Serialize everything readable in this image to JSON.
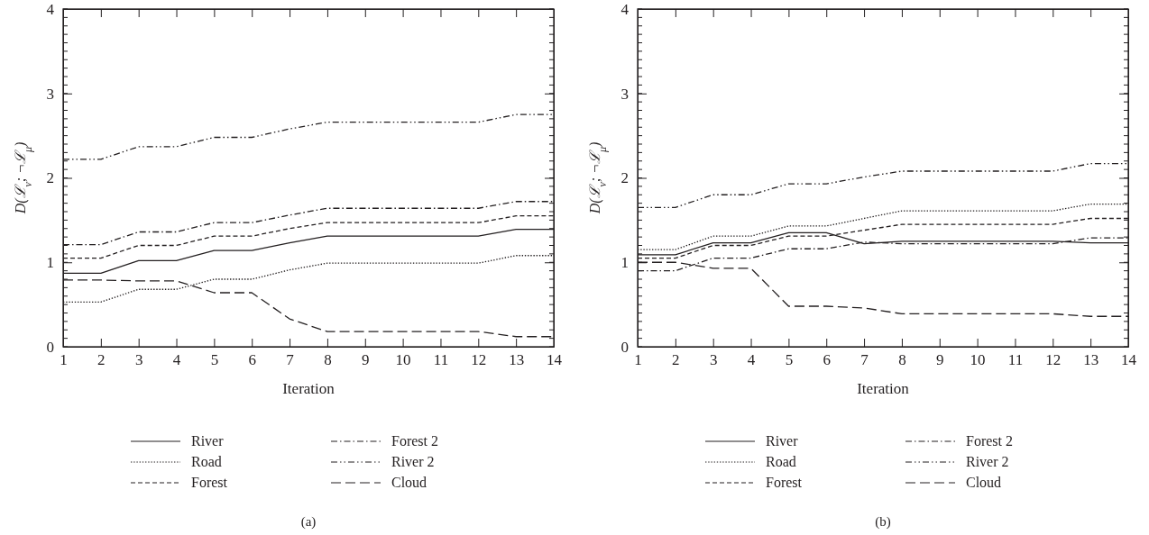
{
  "chart_data": [
    {
      "type": "line",
      "xlabel": "Iteration",
      "ylabel": "D(ℒ$_{ν}$; ¬ℒ$_{μ}$)",
      "annotations": [
        "(a)"
      ],
      "legend": "bottom",
      "xlim": [
        1,
        14
      ],
      "xticks": [
        1,
        2,
        3,
        4,
        5,
        6,
        7,
        8,
        9,
        10,
        11,
        12,
        13,
        14
      ],
      "ylim": [
        0,
        4
      ],
      "yticks": [
        0,
        1,
        2,
        3,
        4
      ],
      "x": [
        1,
        2,
        3,
        4,
        5,
        6,
        7,
        8,
        9,
        10,
        11,
        12,
        13,
        14
      ],
      "series": [
        {
          "name": "River",
          "color": "#231f20",
          "line_style": "solid",
          "values": [
            0.87,
            0.87,
            1.02,
            1.02,
            1.14,
            1.14,
            1.23,
            1.31,
            1.31,
            1.31,
            1.31,
            1.31,
            1.39,
            1.39
          ]
        },
        {
          "name": "Road",
          "color": "#231f20",
          "line_style": "dotted",
          "values": [
            0.53,
            0.53,
            0.68,
            0.68,
            0.8,
            0.8,
            0.91,
            0.99,
            0.99,
            0.99,
            0.99,
            0.99,
            1.08,
            1.08
          ]
        },
        {
          "name": "Forest",
          "color": "#231f20",
          "line_style": "dashed",
          "values": [
            1.05,
            1.05,
            1.2,
            1.2,
            1.31,
            1.31,
            1.4,
            1.47,
            1.47,
            1.47,
            1.47,
            1.47,
            1.55,
            1.55
          ]
        },
        {
          "name": "Forest 2",
          "color": "#231f20",
          "line_style": "dashdot",
          "values": [
            1.21,
            1.21,
            1.36,
            1.36,
            1.47,
            1.47,
            1.56,
            1.64,
            1.64,
            1.64,
            1.64,
            1.64,
            1.72,
            1.72
          ]
        },
        {
          "name": "River 2",
          "color": "#231f20",
          "line_style": "dashdotdot",
          "values": [
            2.22,
            2.22,
            2.37,
            2.37,
            2.48,
            2.48,
            2.58,
            2.66,
            2.66,
            2.66,
            2.66,
            2.66,
            2.75,
            2.75
          ]
        },
        {
          "name": "Cloud",
          "color": "#231f20",
          "line_style": "longdash",
          "values": [
            0.79,
            0.79,
            0.78,
            0.78,
            0.64,
            0.64,
            0.33,
            0.18,
            0.18,
            0.18,
            0.18,
            0.18,
            0.12,
            0.12
          ]
        }
      ]
    },
    {
      "type": "line",
      "xlabel": "Iteration",
      "ylabel": "D(ℒ$_{ν}$; ¬ℒ$_{μ}$)",
      "annotations": [
        "(b)"
      ],
      "legend": "bottom",
      "xlim": [
        1,
        14
      ],
      "xticks": [
        1,
        2,
        3,
        4,
        5,
        6,
        7,
        8,
        9,
        10,
        11,
        12,
        13,
        14
      ],
      "ylim": [
        0,
        4
      ],
      "yticks": [
        0,
        1,
        2,
        3,
        4
      ],
      "x": [
        1,
        2,
        3,
        4,
        5,
        6,
        7,
        8,
        9,
        10,
        11,
        12,
        13,
        14
      ],
      "series": [
        {
          "name": "River",
          "color": "#231f20",
          "line_style": "solid",
          "values": [
            1.09,
            1.09,
            1.23,
            1.23,
            1.35,
            1.35,
            1.22,
            1.25,
            1.25,
            1.25,
            1.25,
            1.25,
            1.23,
            1.23
          ]
        },
        {
          "name": "Road",
          "color": "#231f20",
          "line_style": "dotted",
          "values": [
            1.15,
            1.15,
            1.31,
            1.31,
            1.43,
            1.43,
            1.52,
            1.61,
            1.61,
            1.61,
            1.61,
            1.61,
            1.69,
            1.69
          ]
        },
        {
          "name": "Forest",
          "color": "#231f20",
          "line_style": "dashed",
          "values": [
            1.05,
            1.05,
            1.2,
            1.2,
            1.31,
            1.31,
            1.38,
            1.45,
            1.45,
            1.45,
            1.45,
            1.45,
            1.52,
            1.52
          ]
        },
        {
          "name": "Forest 2",
          "color": "#231f20",
          "line_style": "dashdot",
          "values": [
            0.9,
            0.9,
            1.05,
            1.05,
            1.16,
            1.16,
            1.24,
            1.22,
            1.22,
            1.22,
            1.22,
            1.22,
            1.29,
            1.29
          ]
        },
        {
          "name": "River 2",
          "color": "#231f20",
          "line_style": "dashdotdot",
          "values": [
            1.65,
            1.65,
            1.8,
            1.8,
            1.93,
            1.93,
            2.01,
            2.08,
            2.08,
            2.08,
            2.08,
            2.08,
            2.17,
            2.17
          ]
        },
        {
          "name": "Cloud",
          "color": "#231f20",
          "line_style": "longdash",
          "values": [
            1.0,
            1.0,
            0.93,
            0.93,
            0.48,
            0.48,
            0.46,
            0.39,
            0.39,
            0.39,
            0.39,
            0.39,
            0.36,
            0.36
          ]
        }
      ]
    }
  ]
}
